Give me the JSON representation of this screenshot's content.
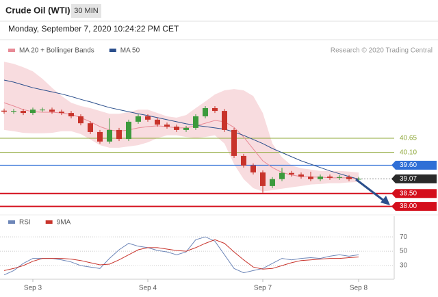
{
  "header": {
    "title": "Crude Oil (WTI)",
    "timeframe": "30 MIN",
    "timestamp": "Monday, September 7, 2020 10:24:22 PM CET"
  },
  "chart_data": [
    {
      "type": "candlestick",
      "source": "Research © 2020 Trading Central",
      "categories": [
        null,
        null,
        null,
        "Sep 3",
        null,
        null,
        null,
        null,
        null,
        null,
        null,
        null,
        null,
        null,
        null,
        "Sep 4",
        null,
        null,
        null,
        null,
        null,
        null,
        null,
        null,
        null,
        null,
        null,
        "Sep 7",
        null,
        null,
        null,
        null,
        null,
        null,
        null,
        null,
        null,
        "Sep 8"
      ],
      "open": [
        41.72,
        41.68,
        41.71,
        41.63,
        41.76,
        41.76,
        41.68,
        41.63,
        41.5,
        41.23,
        40.89,
        40.52,
        40.97,
        40.62,
        41.29,
        41.5,
        41.37,
        41.18,
        41.1,
        40.97,
        41.05,
        41.5,
        41.82,
        41.71,
        40.97,
        39.96,
        39.59,
        39.32,
        38.79,
        39.06,
        39.3,
        39.24,
        39.16,
        39.06,
        39.16,
        39.11,
        39.14,
        39.06
      ],
      "high": [
        41.8,
        41.79,
        41.79,
        41.84,
        41.84,
        41.84,
        41.76,
        41.71,
        41.58,
        41.31,
        40.97,
        41.42,
        41.05,
        41.37,
        41.58,
        41.58,
        41.45,
        41.26,
        41.18,
        41.13,
        41.58,
        41.9,
        41.9,
        41.79,
        41.05,
        40.04,
        39.67,
        39.4,
        39.14,
        39.5,
        39.38,
        39.32,
        39.35,
        39.24,
        39.24,
        39.22,
        39.22,
        39.15
      ],
      "low": [
        41.6,
        41.6,
        41.55,
        41.55,
        41.68,
        41.6,
        41.55,
        41.42,
        41.15,
        40.81,
        40.44,
        40.44,
        40.54,
        40.54,
        41.21,
        41.29,
        41.1,
        41.02,
        40.89,
        40.89,
        40.97,
        41.42,
        41.63,
        40.89,
        39.88,
        39.51,
        39.24,
        38.53,
        38.71,
        38.98,
        39.16,
        39.08,
        38.98,
        38.98,
        39.03,
        39.03,
        38.98,
        38.99
      ],
      "close": [
        41.68,
        41.71,
        41.63,
        41.76,
        41.76,
        41.68,
        41.63,
        41.5,
        41.23,
        40.89,
        40.52,
        40.97,
        40.62,
        41.29,
        41.5,
        41.37,
        41.18,
        41.1,
        40.97,
        41.05,
        41.5,
        41.82,
        41.71,
        40.97,
        39.96,
        39.59,
        39.32,
        38.79,
        39.06,
        39.3,
        39.24,
        39.16,
        39.06,
        39.16,
        39.11,
        39.14,
        39.06,
        39.07
      ],
      "color_up": "#3c9a3c",
      "color_down": "#c8332b",
      "series": [
        {
          "name": "MA 20 + Bollinger Bands",
          "color": "#e88a96",
          "values": [
            42.03,
            41.9,
            41.76,
            41.68,
            41.66,
            41.66,
            41.63,
            41.58,
            41.45,
            41.29,
            41.1,
            40.97,
            40.92,
            40.97,
            41.05,
            41.1,
            41.13,
            41.1,
            41.05,
            41.05,
            41.13,
            41.23,
            41.34,
            41.29,
            41.07,
            40.7,
            40.23,
            39.77,
            39.51,
            39.32,
            39.22,
            39.16,
            39.14,
            39.14,
            39.11,
            39.11,
            39.11,
            39.08
          ],
          "upper": [
            43.62,
            43.54,
            43.41,
            43.25,
            42.96,
            42.61,
            42.29,
            42.03,
            41.9,
            41.82,
            41.71,
            41.6,
            41.6,
            41.66,
            41.76,
            41.76,
            41.63,
            41.5,
            41.45,
            41.55,
            41.82,
            42.08,
            42.35,
            42.51,
            42.56,
            42.51,
            42.29,
            41.63,
            40.44,
            39.91,
            39.59,
            39.48,
            39.43,
            39.38,
            39.38,
            39.38,
            39.35,
            39.32
          ],
          "lower": [
            40.97,
            40.92,
            40.86,
            40.84,
            40.84,
            40.86,
            40.92,
            40.92,
            40.81,
            40.6,
            40.38,
            40.28,
            40.28,
            40.33,
            40.38,
            40.49,
            40.65,
            40.76,
            40.76,
            40.7,
            40.65,
            40.7,
            40.76,
            40.44,
            39.64,
            39.06,
            38.71,
            38.58,
            38.63,
            38.69,
            38.74,
            38.79,
            38.85,
            38.87,
            38.9,
            38.9,
            38.93,
            38.95
          ]
        },
        {
          "name": "MA 50",
          "color": "#2b4f8c",
          "values": [
            42.91,
            42.83,
            42.72,
            42.61,
            42.53,
            42.45,
            42.37,
            42.27,
            42.16,
            42.06,
            41.95,
            41.84,
            41.76,
            41.68,
            41.6,
            41.53,
            41.45,
            41.37,
            41.29,
            41.21,
            41.15,
            41.1,
            41.05,
            41.0,
            40.89,
            40.76,
            40.6,
            40.44,
            40.25,
            40.09,
            39.93,
            39.77,
            39.64,
            39.51,
            39.38,
            39.27,
            39.16,
            39.06
          ]
        }
      ],
      "levels": [
        {
          "value": 40.65,
          "color": "#8fa83a",
          "box": false,
          "dashed": false
        },
        {
          "value": 40.1,
          "label": "40.10",
          "color": "#8fa83a",
          "box": false,
          "dashed": false
        },
        {
          "value": 39.6,
          "label": "39.60",
          "color": "#2f6fd6",
          "box": true,
          "dashed": false
        },
        {
          "value": 39.07,
          "color": "#2a2a2a",
          "box": true,
          "dashed": true
        },
        {
          "value": 38.5,
          "label": "38.50",
          "color": "#d40f1c",
          "box": true,
          "dashed": false
        },
        {
          "value": 38,
          "label": "38.00",
          "color": "#d40f1c",
          "box": true,
          "dashed": false
        }
      ],
      "ylim": [
        37.75,
        43.76
      ]
    },
    {
      "type": "line",
      "series": [
        {
          "name": "RSI",
          "color": "#6d86b8",
          "values": [
            17,
            23,
            33,
            40,
            40,
            40,
            38,
            35,
            30,
            28,
            26,
            40,
            52,
            61,
            57,
            55,
            51,
            49,
            45,
            49,
            66,
            70,
            64,
            45,
            26,
            20,
            23,
            26,
            33,
            40,
            38,
            40,
            41,
            40,
            43,
            45,
            43,
            45
          ]
        },
        {
          "name": "9MA",
          "color": "#c8332b",
          "values": [
            23,
            26,
            30,
            36,
            40,
            40,
            40,
            39,
            37,
            34,
            31,
            32,
            38,
            45,
            52,
            55,
            55,
            53,
            51,
            50,
            55,
            61,
            66,
            61,
            49,
            38,
            28,
            25,
            26,
            30,
            34,
            37,
            38,
            39,
            40,
            40,
            41,
            42
          ]
        }
      ],
      "ylim": [
        11,
        93
      ],
      "yticks": [
        30,
        50,
        70
      ],
      "grid": true
    }
  ]
}
